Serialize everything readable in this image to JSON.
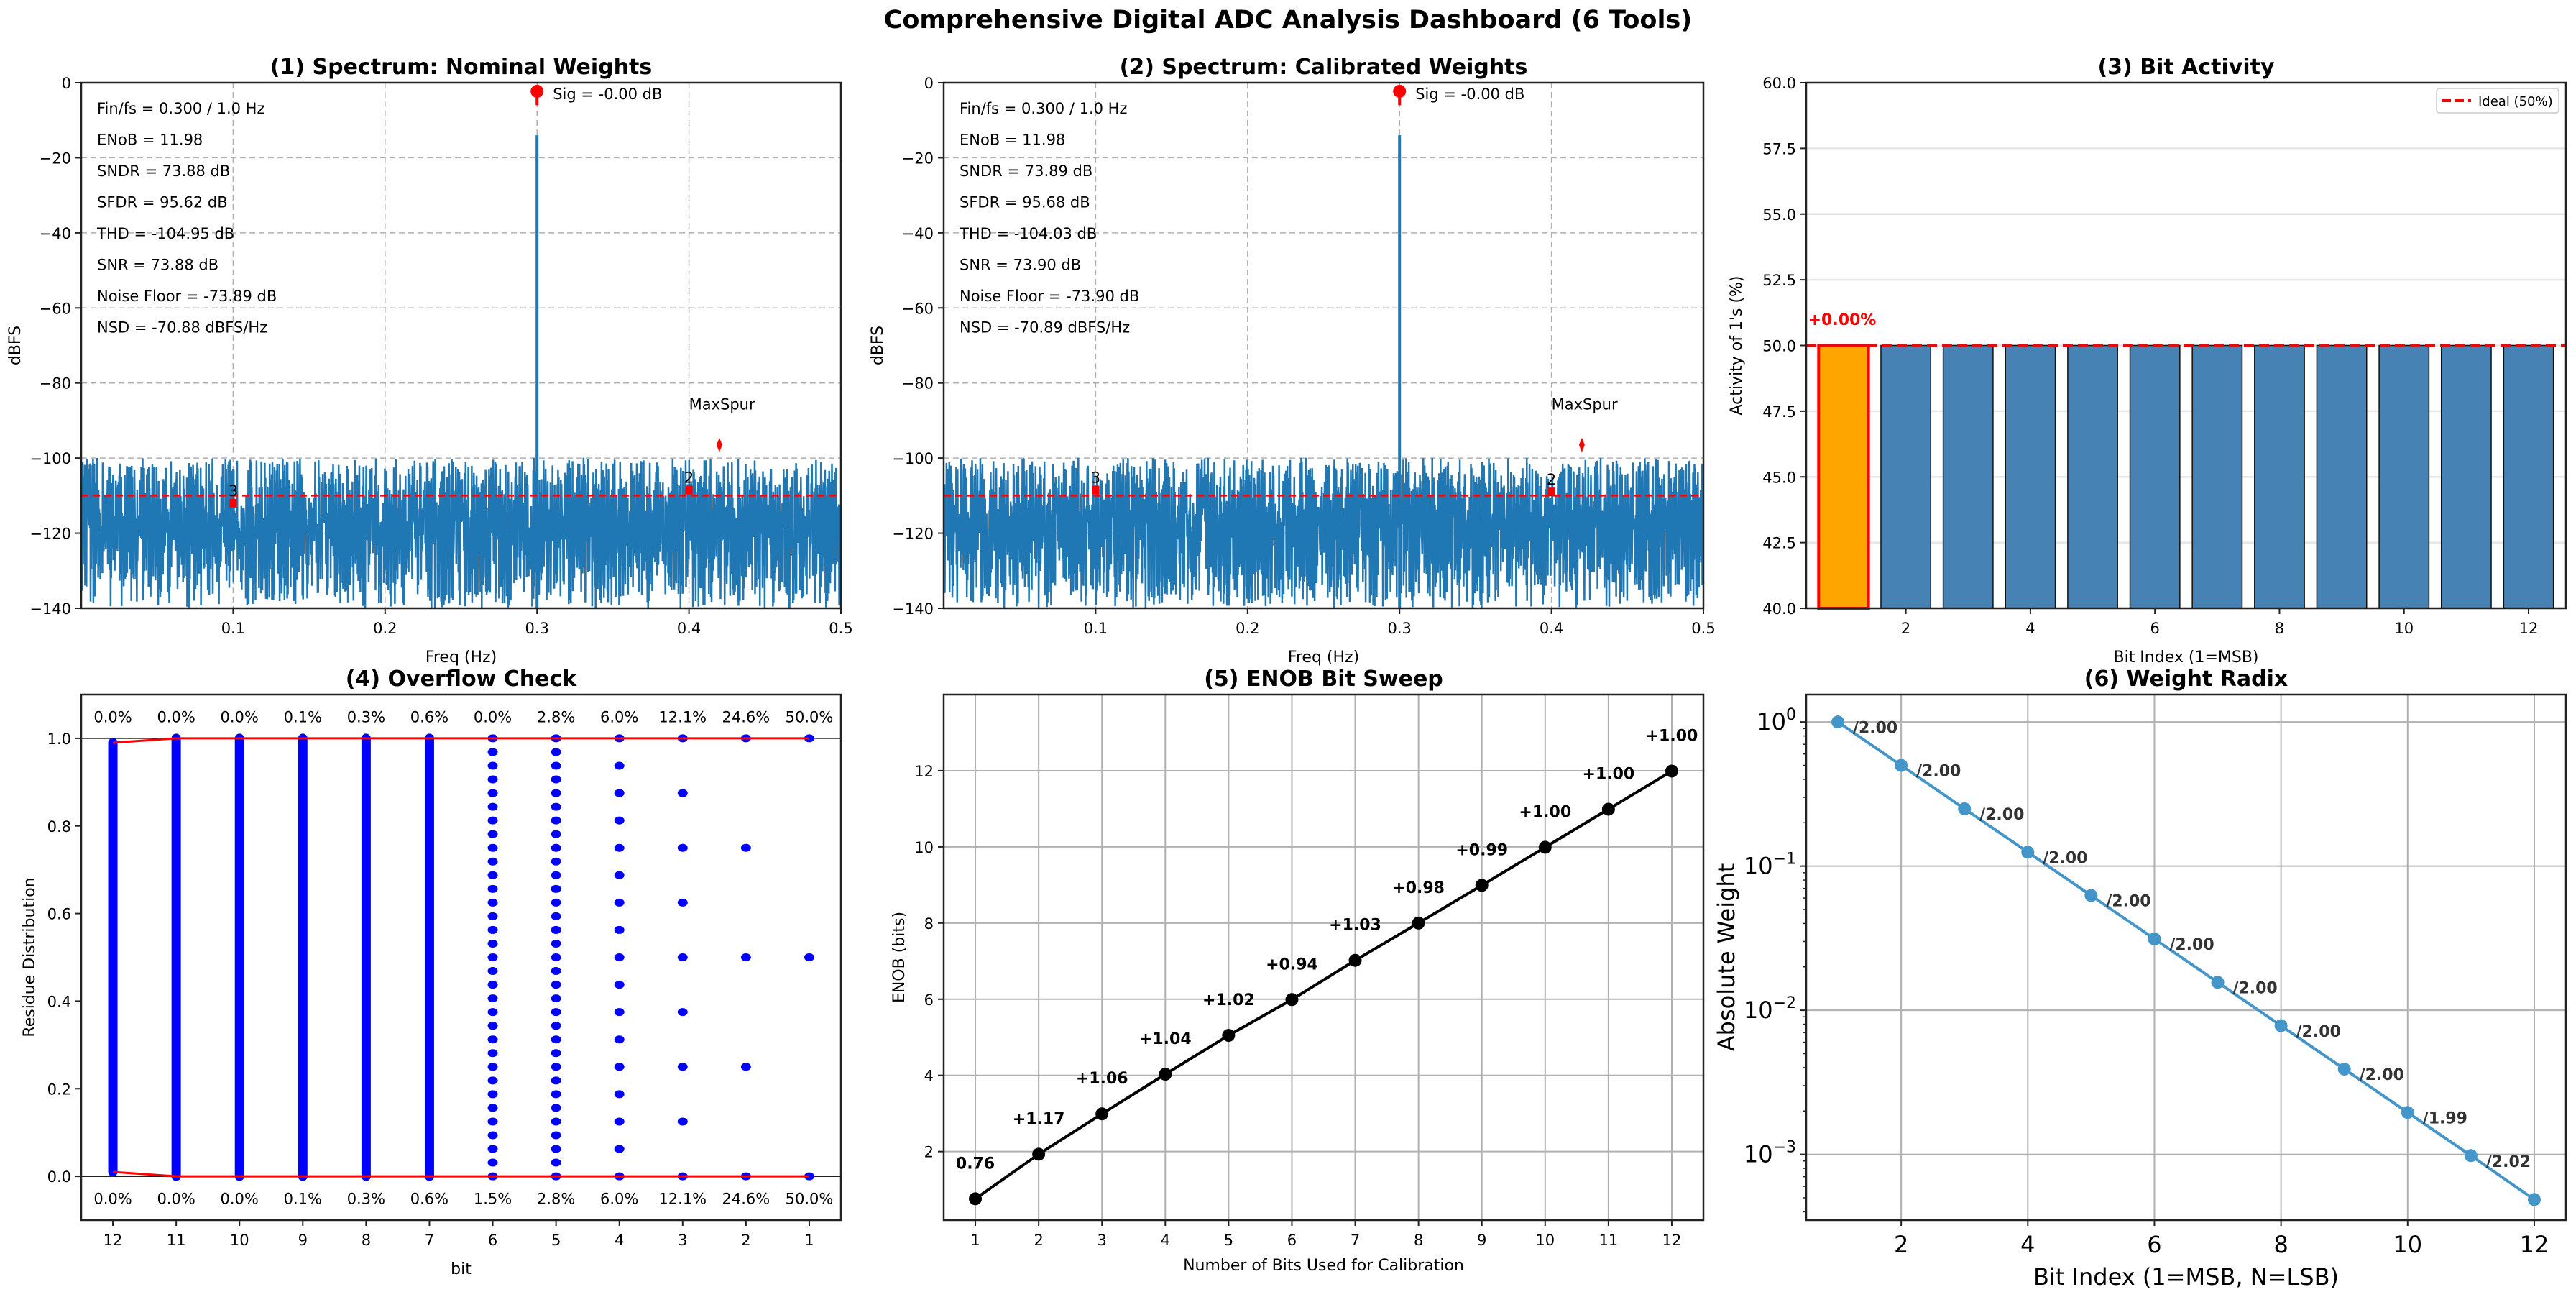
{
  "title": "Comprehensive Digital ADC Analysis Dashboard (6 Tools)",
  "colors": {
    "spectrum_line": "#1f77b4",
    "marker_red": "#ff0000",
    "bar_blue": "#4682b4",
    "bar_highlight": "#ffa500",
    "scatter_blue": "#0000ff",
    "radix_line": "#4495c9",
    "grid": "#b0b0b0"
  },
  "chart_data": [
    {
      "id": "spectrum_nominal",
      "type": "line",
      "title": "(1) Spectrum: Nominal Weights",
      "xlabel": "Freq (Hz)",
      "ylabel": "dBFS",
      "xlim": [
        0,
        0.5
      ],
      "ylim": [
        -140,
        0
      ],
      "xticks": [
        "0.1",
        "0.2",
        "0.3",
        "0.4",
        "0.5"
      ],
      "xtick_values": [
        0.1,
        0.2,
        0.3,
        0.4,
        0.5
      ],
      "yticks": [
        "0",
        "−20",
        "−40",
        "−60",
        "−80",
        "−100",
        "−120",
        "−140"
      ],
      "ytick_values": [
        0,
        -20,
        -40,
        -60,
        -80,
        -100,
        -120,
        -140
      ],
      "grid": "dashed",
      "metrics": [
        "Fin/fs = 0.300 / 1.0 Hz",
        "ENoB = 11.98",
        "SNDR = 73.88 dB",
        "SFDR = 95.62 dB",
        "THD = -104.95 dB",
        "SNR = 73.88 dB",
        "Noise Floor = -73.89 dB",
        "NSD = -70.88 dBFS/Hz"
      ],
      "signal": {
        "freq": 0.3,
        "level": 0.0,
        "label": "Sig = -0.00 dB"
      },
      "noise_floor_line": -110,
      "noise_band": {
        "mean": -112,
        "top": -100,
        "bottom": -140
      },
      "harmonics": [
        {
          "label": "3",
          "freq": 0.1,
          "level": -112
        },
        {
          "label": "2",
          "freq": 0.4,
          "level": -108.5
        }
      ],
      "max_spur": {
        "label": "MaxSpur",
        "freq": 0.42,
        "level": -96.5
      }
    },
    {
      "id": "spectrum_calibrated",
      "type": "line",
      "title": "(2) Spectrum: Calibrated Weights",
      "xlabel": "Freq (Hz)",
      "ylabel": "dBFS",
      "xlim": [
        0,
        0.5
      ],
      "ylim": [
        -140,
        0
      ],
      "xticks": [
        "0.1",
        "0.2",
        "0.3",
        "0.4",
        "0.5"
      ],
      "xtick_values": [
        0.1,
        0.2,
        0.3,
        0.4,
        0.5
      ],
      "yticks": [
        "0",
        "−20",
        "−40",
        "−60",
        "−80",
        "−100",
        "−120",
        "−140"
      ],
      "ytick_values": [
        0,
        -20,
        -40,
        -60,
        -80,
        -100,
        -120,
        -140
      ],
      "grid": "dashed",
      "metrics": [
        "Fin/fs = 0.300 / 1.0 Hz",
        "ENoB = 11.98",
        "SNDR = 73.89 dB",
        "SFDR = 95.68 dB",
        "THD = -104.03 dB",
        "SNR = 73.90 dB",
        "Noise Floor = -73.90 dB",
        "NSD = -70.89 dBFS/Hz"
      ],
      "signal": {
        "freq": 0.3,
        "level": 0.0,
        "label": "Sig = -0.00 dB"
      },
      "noise_floor_line": -110,
      "noise_band": {
        "mean": -112,
        "top": -100,
        "bottom": -140
      },
      "harmonics": [
        {
          "label": "3",
          "freq": 0.1,
          "level": -108.5
        },
        {
          "label": "2",
          "freq": 0.4,
          "level": -109
        }
      ],
      "max_spur": {
        "label": "MaxSpur",
        "freq": 0.42,
        "level": -96.5
      }
    },
    {
      "id": "bit_activity",
      "type": "bar",
      "title": "(3) Bit Activity",
      "xlabel": "Bit Index (1=MSB)",
      "ylabel": "Activity of 1's (%)",
      "categories": [
        1,
        2,
        3,
        4,
        5,
        6,
        7,
        8,
        9,
        10,
        11,
        12
      ],
      "values": [
        50.0,
        50.0,
        50.0,
        50.0,
        50.0,
        50.0,
        50.0,
        50.0,
        50.0,
        50.0,
        50.0,
        50.0
      ],
      "highlight_index": 0,
      "highlight_label": "+0.00%",
      "ylim": [
        40,
        60
      ],
      "yticks": [
        "40.0",
        "42.5",
        "45.0",
        "47.5",
        "50.0",
        "52.5",
        "55.0",
        "57.5",
        "60.0"
      ],
      "ytick_values": [
        40,
        42.5,
        45,
        47.5,
        50,
        52.5,
        55,
        57.5,
        60
      ],
      "xticks": [
        "2",
        "4",
        "6",
        "8",
        "10",
        "12"
      ],
      "xtick_values": [
        2,
        4,
        6,
        8,
        10,
        12
      ],
      "ideal_line": 50,
      "legend": {
        "label": "Ideal (50%)",
        "position": "top-right"
      }
    },
    {
      "id": "overflow_check",
      "type": "scatter",
      "title": "(4) Overflow Check",
      "xlabel": "bit",
      "ylabel": "Residue Distribution",
      "categories": [
        "12",
        "11",
        "10",
        "9",
        "8",
        "7",
        "6",
        "5",
        "4",
        "3",
        "2",
        "1"
      ],
      "ylim": [
        -0.1,
        1.1
      ],
      "yticks": [
        "0.0",
        "0.2",
        "0.4",
        "0.6",
        "0.8",
        "1.0"
      ],
      "ytick_values": [
        0,
        0.2,
        0.4,
        0.6,
        0.8,
        1.0
      ],
      "top_percent": [
        "0.0%",
        "0.0%",
        "0.0%",
        "0.1%",
        "0.3%",
        "0.6%",
        "0.0%",
        "2.8%",
        "6.0%",
        "12.1%",
        "24.6%",
        "50.0%"
      ],
      "bottom_percent": [
        "0.0%",
        "0.0%",
        "0.0%",
        "0.1%",
        "0.3%",
        "0.6%",
        "1.5%",
        "2.8%",
        "6.0%",
        "12.1%",
        "24.6%",
        "50.0%"
      ],
      "level_counts": [
        0,
        0,
        0,
        0,
        0,
        0,
        64,
        32,
        16,
        8,
        4,
        2
      ],
      "max_envelope": [
        0.99,
        1.0,
        1.0,
        1.0,
        1.0,
        1.0,
        1.0,
        1.0,
        1.0,
        1.0,
        1.0,
        1.0
      ],
      "min_envelope": [
        0.01,
        0.0,
        0.0,
        0.0,
        0.0,
        0.0,
        0.0,
        0.0,
        0.0,
        0.0,
        0.0,
        0.0
      ]
    },
    {
      "id": "enob_sweep",
      "type": "line",
      "title": "(5) ENOB Bit Sweep",
      "xlabel": "Number of Bits Used for Calibration",
      "ylabel": "ENOB (bits)",
      "x": [
        1,
        2,
        3,
        4,
        5,
        6,
        7,
        8,
        9,
        10,
        11,
        12
      ],
      "y": [
        0.76,
        1.93,
        2.99,
        4.03,
        5.05,
        5.99,
        7.02,
        8.0,
        8.99,
        9.99,
        10.99,
        11.99
      ],
      "labels": [
        "0.76",
        "+1.17",
        "+1.06",
        "+1.04",
        "+1.02",
        "+0.94",
        "+1.03",
        "+0.98",
        "+0.99",
        "+1.00",
        "+1.00",
        "+1.00"
      ],
      "xlim": [
        0.5,
        12.5
      ],
      "ylim": [
        0.2,
        14
      ],
      "xticks": [
        "1",
        "2",
        "3",
        "4",
        "5",
        "6",
        "7",
        "8",
        "9",
        "10",
        "11",
        "12"
      ],
      "yticks": [
        "2",
        "4",
        "6",
        "8",
        "10",
        "12"
      ],
      "ytick_values": [
        2,
        4,
        6,
        8,
        10,
        12
      ]
    },
    {
      "id": "weight_radix",
      "type": "line",
      "title": "(6) Weight Radix",
      "xlabel": "Bit Index (1=MSB, N=LSB)",
      "ylabel": "Absolute Weight",
      "yscale": "log",
      "x": [
        1,
        2,
        3,
        4,
        5,
        6,
        7,
        8,
        9,
        10,
        11,
        12
      ],
      "y": [
        1.0,
        0.5,
        0.25,
        0.125,
        0.0625,
        0.03125,
        0.015625,
        0.0078125,
        0.00390625,
        0.001953,
        0.000981,
        0.000486
      ],
      "labels": [
        "/2.00",
        "/2.00",
        "/2.00",
        "/2.00",
        "/2.00",
        "/2.00",
        "/2.00",
        "/2.00",
        "/2.00",
        "/1.99",
        "/2.02"
      ],
      "xlim": [
        0.5,
        12.5
      ],
      "ylim": [
        0.00035,
        1.55
      ],
      "xticks": [
        "2",
        "4",
        "6",
        "8",
        "10",
        "12"
      ],
      "xtick_values": [
        2,
        4,
        6,
        8,
        10,
        12
      ],
      "yticks": [
        {
          "base": "10",
          "exp": "0",
          "value": 1
        },
        {
          "base": "10",
          "exp": "−1",
          "value": 0.1
        },
        {
          "base": "10",
          "exp": "−2",
          "value": 0.01
        },
        {
          "base": "10",
          "exp": "−3",
          "value": 0.001
        }
      ]
    }
  ]
}
